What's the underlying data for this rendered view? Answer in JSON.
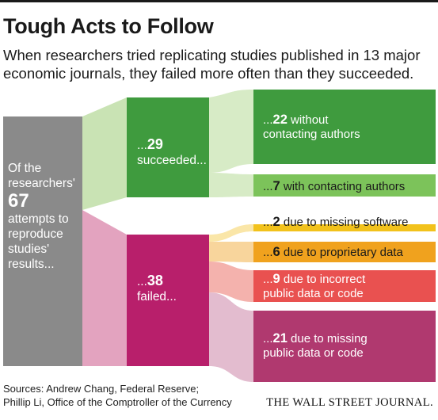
{
  "title": "Tough Acts to Follow",
  "subtitle": "When researchers tried replicating studies published in 13 major economic journals, they failed more often than they succeeded.",
  "source": {
    "line1": "Sources: Andrew Chang, Federal Reserve;",
    "line2": "Phillip Li, Office of the Comptroller of the Currency"
  },
  "brand": "THE WALL STREET JOURNAL.",
  "root": {
    "pre": "Of the researchers'",
    "number": "67",
    "post": "attempts to reproduce studies' results...",
    "value": 67
  },
  "succeeded": {
    "pre": "...",
    "number": "29",
    "label": "succeeded...",
    "value": 29
  },
  "failed": {
    "pre": "...",
    "number": "38",
    "label": "failed...",
    "value": 38
  },
  "outcomes": {
    "without_authors": {
      "pre": "...",
      "number": "22",
      "line1": " without",
      "line2": "contacting authors",
      "value": 22
    },
    "with_authors": {
      "pre": "...",
      "number": "7",
      "line1": " with contacting authors",
      "value": 7
    },
    "missing_software": {
      "pre": "...",
      "number": "2",
      "line1": " due to missing software",
      "value": 2
    },
    "proprietary": {
      "pre": "...",
      "number": "6",
      "line1": " due to proprietary data",
      "value": 6
    },
    "incorrect": {
      "pre": "...",
      "number": "9",
      "line1": " due to incorrect",
      "line2": "public data or code",
      "value": 9
    },
    "missing_data": {
      "pre": "...",
      "number": "21",
      "line1": " due to missing",
      "line2": "public data or code",
      "value": 21
    }
  },
  "colors": {
    "gray": "#8a8a8a",
    "green_dark": "#3f9b3e",
    "green_light": "#7cc35a",
    "magenta": "#b81f6b",
    "yellow": "#f2c21c",
    "orange": "#f0a21e",
    "red": "#e95150",
    "purple": "#b0396f",
    "flow_green": "#c9e3b4",
    "flow_pink": "#e3a3bf"
  }
}
